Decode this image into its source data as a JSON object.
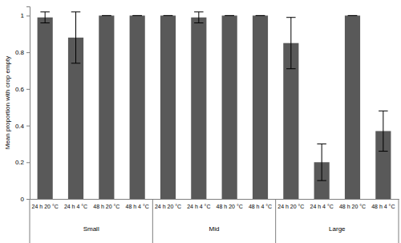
{
  "chart_data": {
    "type": "bar",
    "y_label": "Mean proportion with crop empty",
    "categories": [
      "24 h 20 °C",
      "24 h 4 °C",
      "48 h 20 °C",
      "48 h 4 °C",
      "24 h 20 °C",
      "24 h 4 °C",
      "48 h 20 °C",
      "48 h 4 °C",
      "24 h 20 °C",
      "24 h 4 °C",
      "48 h 20 °C",
      "48 h 4 °C"
    ],
    "group_labels": [
      "Small",
      "Mid",
      "Large"
    ],
    "values": [
      0.99,
      0.88,
      1.0,
      1.0,
      1.0,
      0.99,
      1.0,
      1.0,
      0.85,
      0.2,
      1.0,
      0.37
    ],
    "errors": [
      0.03,
      0.14,
      0,
      0,
      0,
      0.03,
      0,
      0,
      0.14,
      0.1,
      0,
      0.11
    ],
    "color": "#595959",
    "ylim": [
      0,
      1.05
    ],
    "yticks": [
      0,
      0.2,
      0.4,
      0.6,
      0.8,
      1
    ],
    "grid": false
  }
}
